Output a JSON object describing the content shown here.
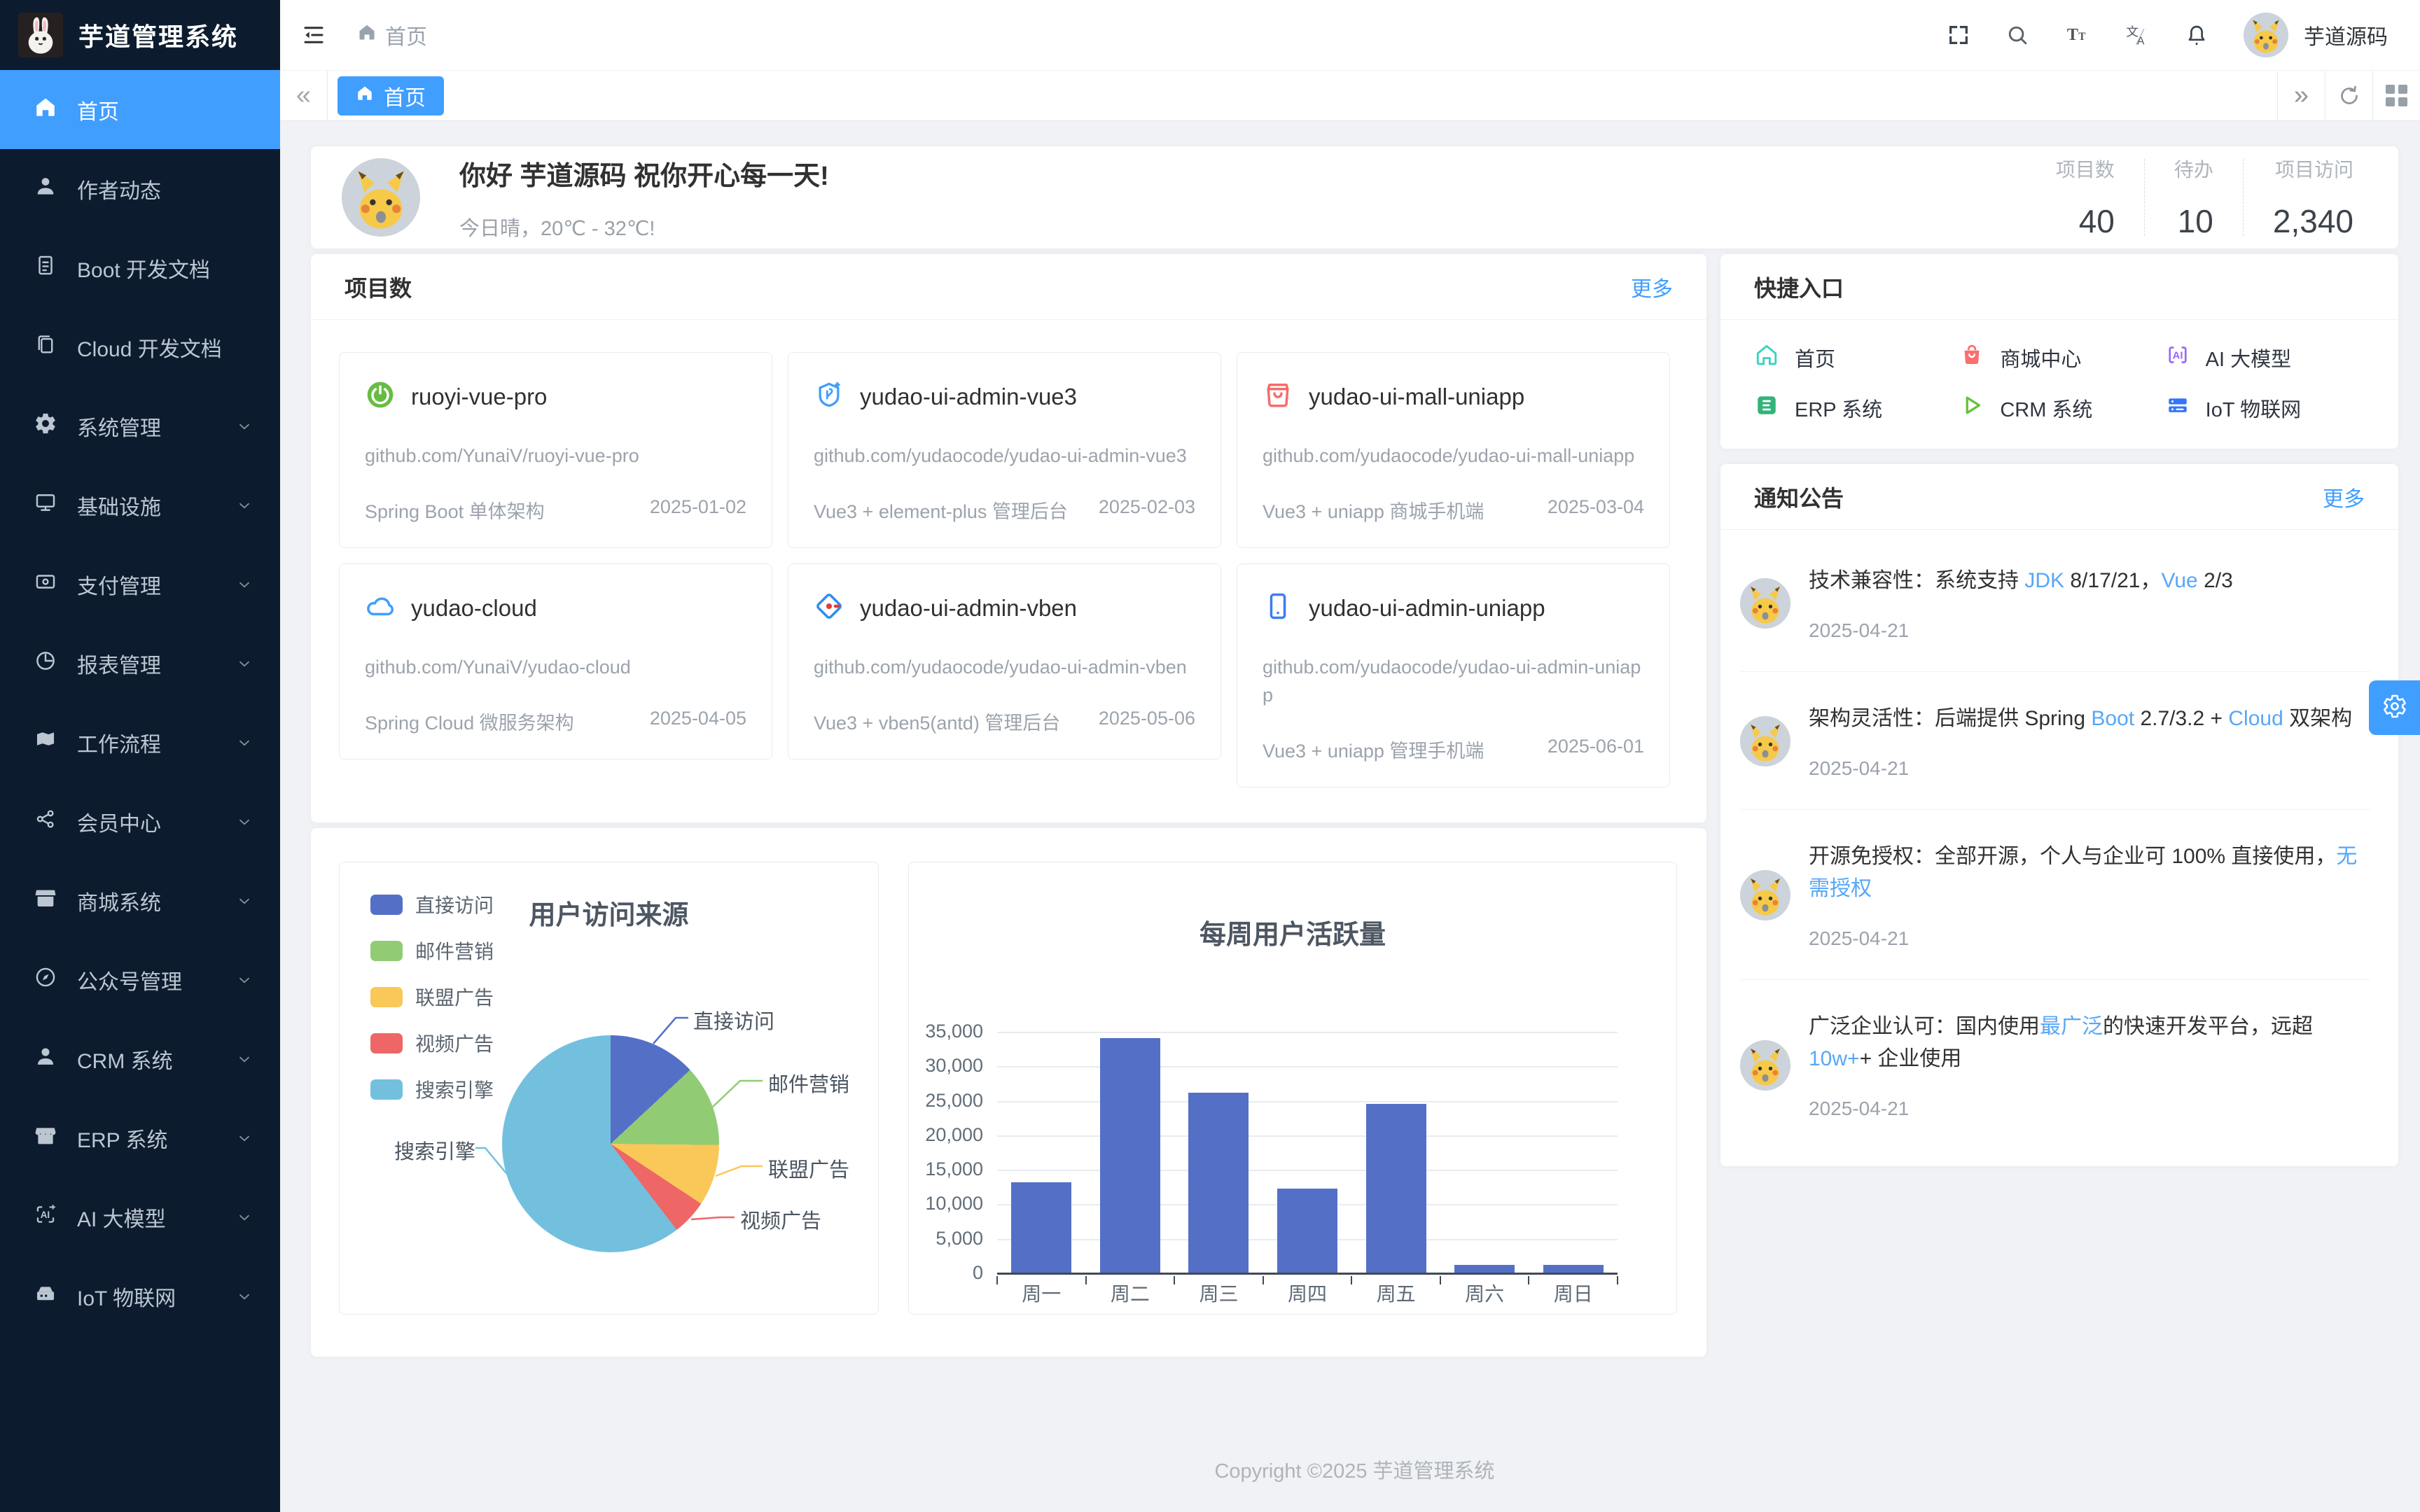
{
  "app": {
    "accent_color": "#409eff",
    "sidebar_bg": "#0c1c2e",
    "content_bg": "#f0f2f5"
  },
  "sidebar": {
    "logo_title": "芋道管理系统",
    "logo_icon": "rabbit-avatar",
    "items": [
      {
        "label": "首页",
        "icon": "home-icon",
        "active": true
      },
      {
        "label": "作者动态",
        "icon": "user-icon"
      },
      {
        "label": "Boot 开发文档",
        "icon": "document-icon"
      },
      {
        "label": "Cloud 开发文档",
        "icon": "documents-icon"
      },
      {
        "label": "系统管理",
        "icon": "gear-icon",
        "expandable": true
      },
      {
        "label": "基础设施",
        "icon": "monitor-icon",
        "expandable": true
      },
      {
        "label": "支付管理",
        "icon": "payment-icon",
        "expandable": true
      },
      {
        "label": "报表管理",
        "icon": "report-icon",
        "expandable": true
      },
      {
        "label": "工作流程",
        "icon": "workflow-icon",
        "expandable": true
      },
      {
        "label": "会员中心",
        "icon": "share-nodes-icon",
        "expandable": true
      },
      {
        "label": "商城系统",
        "icon": "shop-icon",
        "expandable": true
      },
      {
        "label": "公众号管理",
        "icon": "compass-icon",
        "expandable": true
      },
      {
        "label": "CRM 系统",
        "icon": "person-icon",
        "expandable": true
      },
      {
        "label": "ERP 系统",
        "icon": "store-icon",
        "expandable": true
      },
      {
        "label": "AI 大模型",
        "icon": "ai-icon",
        "expandable": true
      },
      {
        "label": "IoT 物联网",
        "icon": "iot-box-icon",
        "expandable": true
      }
    ]
  },
  "header": {
    "breadcrumb": "首页",
    "icons": [
      "hamburger-icon",
      "fullscreen-icon",
      "search-icon",
      "font-size-icon",
      "locale-icon",
      "bell-icon"
    ],
    "username": "芋道源码"
  },
  "tabbar": {
    "active_tab": "首页",
    "left_icon": "«",
    "right_icon": "»",
    "tools": [
      "refresh-icon",
      "grid-icon"
    ]
  },
  "welcome": {
    "greeting": "你好 芋道源码 祝你开心每一天!",
    "weather": "今日晴，20℃ - 32℃!",
    "stats": [
      {
        "label": "项目数",
        "value": "40"
      },
      {
        "label": "待办",
        "value": "10"
      },
      {
        "label": "项目访问",
        "value": "2,340"
      }
    ]
  },
  "projects": {
    "title": "项目数",
    "more": "更多",
    "cards": [
      {
        "name": "ruoyi-vue-pro",
        "repo": "github.com/YunaiV/ruoyi-vue-pro",
        "desc": "Spring Boot 单体架构",
        "date": "2025-01-02",
        "icon": "spring-icon",
        "icon_color": "#67bd42"
      },
      {
        "name": "yudao-ui-admin-vue3",
        "repo": "github.com/yudaocode/yudao-ui-admin-vue3",
        "desc": "Vue3 + element-plus 管理后台",
        "date": "2025-02-03",
        "icon": "vue-badge-icon",
        "icon_color": "#409eff"
      },
      {
        "name": "yudao-ui-mall-uniapp",
        "repo": "github.com/yudaocode/yudao-ui-mall-uniapp",
        "desc": "Vue3 + uniapp 商城手机端",
        "date": "2025-03-04",
        "icon": "shopping-bag-icon",
        "icon_color": "#f56c6c"
      },
      {
        "name": "yudao-cloud",
        "repo": "github.com/YunaiV/yudao-cloud",
        "desc": "Spring Cloud 微服务架构",
        "date": "2025-04-05",
        "icon": "cloud-icon",
        "icon_color": "#409eff"
      },
      {
        "name": "yudao-ui-admin-vben",
        "repo": "github.com/yudaocode/yudao-ui-admin-vben",
        "desc": "Vue3 + vben5(antd) 管理后台",
        "date": "2025-05-06",
        "icon": "vben-diamond-icon",
        "icon_color": "#2d8cf0"
      },
      {
        "name": "yudao-ui-admin-uniapp",
        "repo": "github.com/yudaocode/yudao-ui-admin-uniapp",
        "desc": "Vue3 + uniapp 管理手机端",
        "date": "2025-06-01",
        "icon": "phone-icon",
        "icon_color": "#3c7bf6"
      }
    ]
  },
  "quick": {
    "title": "快捷入口",
    "links": [
      {
        "label": "首页",
        "icon": "home-icon",
        "color": "#38d3c2"
      },
      {
        "label": "商城中心",
        "icon": "mall-bag-icon",
        "color": "#fc6f6f"
      },
      {
        "label": "AI 大模型",
        "icon": "ai-icon",
        "color": "#9a68f8"
      },
      {
        "label": "ERP 系统",
        "icon": "erp-square-icon",
        "color": "#34b37a"
      },
      {
        "label": "CRM 系统",
        "icon": "triangle-icon",
        "color": "#67c23a"
      },
      {
        "label": "IoT 物联网",
        "icon": "server-box-icon",
        "color": "#3477f6"
      }
    ]
  },
  "notices": {
    "title": "通知公告",
    "more": "更多",
    "items": [
      {
        "date": "2025-04-21",
        "segments": [
          {
            "text": "技术兼容性：系统支持 "
          },
          {
            "text": "JDK",
            "link": true
          },
          {
            "text": " 8/17/21，"
          },
          {
            "text": "Vue",
            "link": true
          },
          {
            "text": " 2/3"
          }
        ]
      },
      {
        "date": "2025-04-21",
        "segments": [
          {
            "text": "架构灵活性：后端提供 Spring "
          },
          {
            "text": "Boot",
            "link": true
          },
          {
            "text": " 2.7/3.2 + "
          },
          {
            "text": "Cloud",
            "link": true
          },
          {
            "text": " 双架构"
          }
        ]
      },
      {
        "date": "2025-04-21",
        "segments": [
          {
            "text": "开源免授权：全部开源，个人与企业可 100% 直接使用，"
          },
          {
            "text": "无需授权",
            "link": true
          }
        ]
      },
      {
        "date": "2025-04-21",
        "segments": [
          {
            "text": "广泛企业认可：国内使用"
          },
          {
            "text": "最广泛",
            "link": true
          },
          {
            "text": "的快速开发平台，远超 "
          },
          {
            "text": "10w+",
            "link": true
          },
          {
            "text": "+ 企业使用"
          }
        ]
      }
    ]
  },
  "footer": "Copyright ©2025 芋道管理系统",
  "floating": {
    "icon": "gear-icon",
    "color": "#409eff"
  },
  "chart_data": [
    {
      "type": "pie",
      "title": "用户访问来源",
      "legend_position": "left",
      "series": [
        {
          "name": "直接访问",
          "value": 335,
          "color": "#5470c6"
        },
        {
          "name": "邮件营销",
          "value": 310,
          "color": "#91cc75"
        },
        {
          "name": "联盟广告",
          "value": 234,
          "color": "#fac858"
        },
        {
          "name": "视频广告",
          "value": 135,
          "color": "#ee6666"
        },
        {
          "name": "搜索引擎",
          "value": 1548,
          "color": "#73c0de"
        }
      ]
    },
    {
      "type": "bar",
      "title": "每周用户活跃量",
      "categories": [
        "周一",
        "周二",
        "周三",
        "周四",
        "周五",
        "周六",
        "周日"
      ],
      "values": [
        13253,
        34235,
        26321,
        12340,
        24643,
        1322,
        1324
      ],
      "xlabel": "",
      "ylabel": "",
      "ylim": [
        0,
        35000
      ],
      "ytick_step": 5000,
      "bar_color": "#5470c6",
      "grid": true
    }
  ]
}
